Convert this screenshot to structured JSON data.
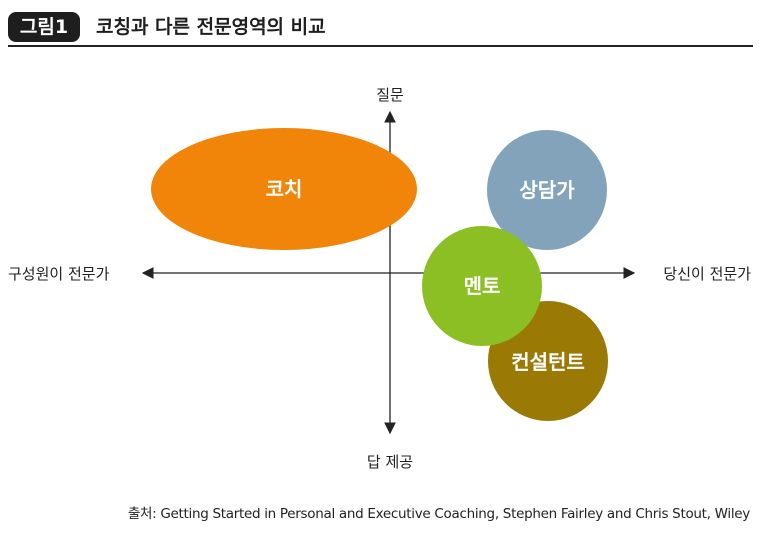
{
  "header": {
    "badge": "그림1",
    "title": "코칭과 다른 전문영역의 비교"
  },
  "axes": {
    "top": "질문",
    "bottom": "답 제공",
    "left": "구성원이 전문가",
    "right": "당신이 전문가"
  },
  "bubbles": {
    "coach": {
      "label": "코치",
      "color": "#f0850a"
    },
    "counseling": {
      "label": "상담가",
      "color": "#82a3ba"
    },
    "mentor": {
      "label": "멘토",
      "color": "#8cbf24"
    },
    "consultant": {
      "label": "컨설턴트",
      "color": "#9a7a05"
    }
  },
  "source": "출처: Getting Started in Personal and Executive Coaching, Stephen Fairley and Chris Stout, Wiley"
}
